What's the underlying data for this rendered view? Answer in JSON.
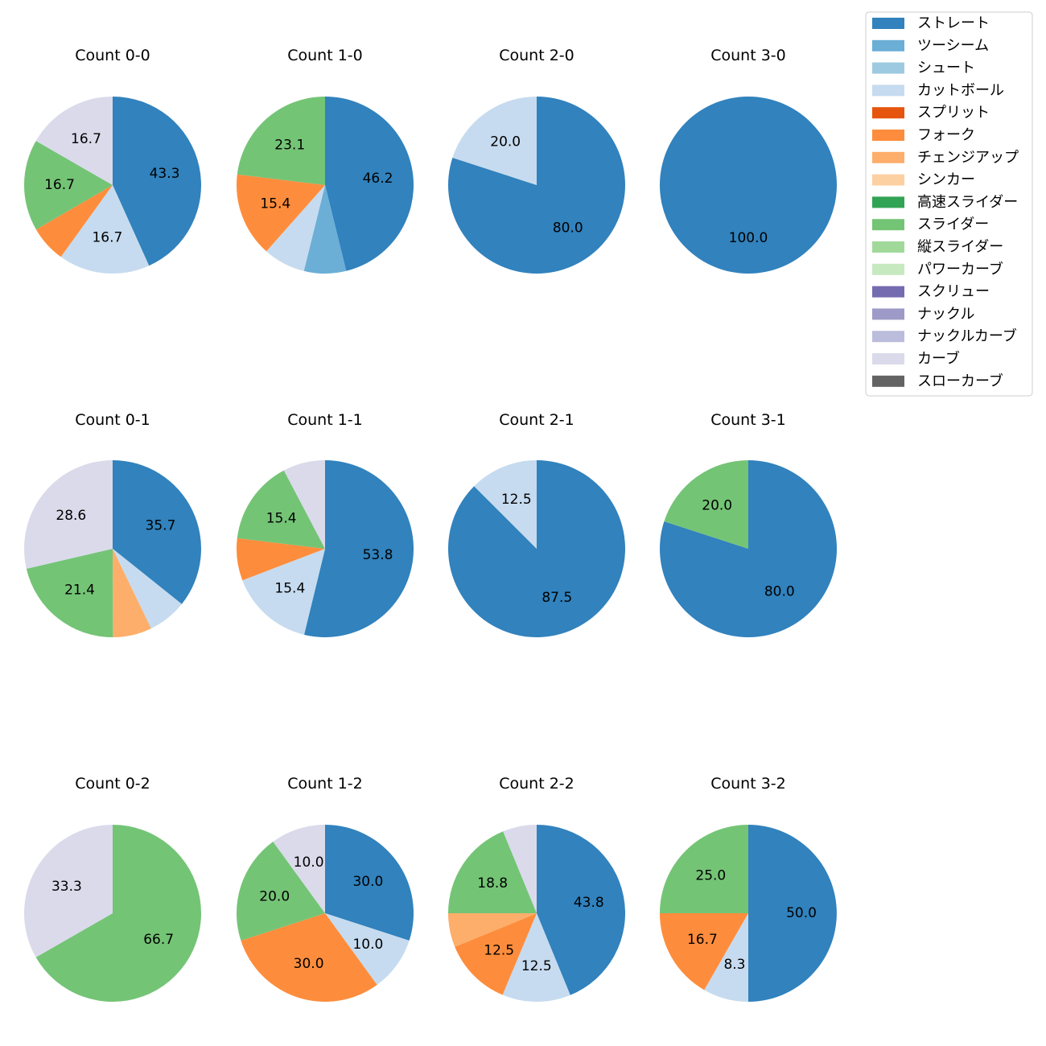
{
  "legend": {
    "entries": [
      {
        "label": "ストレート",
        "color": "#3182bd"
      },
      {
        "label": "ツーシーム",
        "color": "#6baed6"
      },
      {
        "label": "シュート",
        "color": "#9ecae1"
      },
      {
        "label": "カットボール",
        "color": "#c6dbef"
      },
      {
        "label": "スプリット",
        "color": "#e6550d"
      },
      {
        "label": "フォーク",
        "color": "#fd8d3c"
      },
      {
        "label": "チェンジアップ",
        "color": "#fdae6b"
      },
      {
        "label": "シンカー",
        "color": "#fdd0a2"
      },
      {
        "label": "高速スライダー",
        "color": "#31a354"
      },
      {
        "label": "スライダー",
        "color": "#74c476"
      },
      {
        "label": "縦スライダー",
        "color": "#a1d99b"
      },
      {
        "label": "パワーカーブ",
        "color": "#c7e9c0"
      },
      {
        "label": "スクリュー",
        "color": "#756bb1"
      },
      {
        "label": "ナックル",
        "color": "#9e9ac8"
      },
      {
        "label": "ナックルカーブ",
        "color": "#bcbddc"
      },
      {
        "label": "カーブ",
        "color": "#dadaeb"
      },
      {
        "label": "スローカーブ",
        "color": "#636363"
      }
    ]
  },
  "chart_data": [
    {
      "type": "pie",
      "title": "Count 0-0",
      "slices": [
        {
          "name": "ストレート",
          "value": 43.3,
          "label": "43.3"
        },
        {
          "name": "カットボール",
          "value": 16.7,
          "label": "16.7"
        },
        {
          "name": "フォーク",
          "value": 6.7,
          "label": ""
        },
        {
          "name": "スライダー",
          "value": 16.7,
          "label": "16.7"
        },
        {
          "name": "カーブ",
          "value": 16.7,
          "label": "16.7"
        }
      ]
    },
    {
      "type": "pie",
      "title": "Count 1-0",
      "slices": [
        {
          "name": "ストレート",
          "value": 46.2,
          "label": "46.2"
        },
        {
          "name": "ツーシーム",
          "value": 7.7,
          "label": ""
        },
        {
          "name": "カットボール",
          "value": 7.7,
          "label": ""
        },
        {
          "name": "フォーク",
          "value": 15.4,
          "label": "15.4"
        },
        {
          "name": "スライダー",
          "value": 23.1,
          "label": "23.1"
        }
      ]
    },
    {
      "type": "pie",
      "title": "Count 2-0",
      "slices": [
        {
          "name": "ストレート",
          "value": 80.0,
          "label": "80.0"
        },
        {
          "name": "カットボール",
          "value": 20.0,
          "label": "20.0"
        }
      ]
    },
    {
      "type": "pie",
      "title": "Count 3-0",
      "slices": [
        {
          "name": "ストレート",
          "value": 100.0,
          "label": "100.0"
        }
      ]
    },
    {
      "type": "pie",
      "title": "Count 0-1",
      "slices": [
        {
          "name": "ストレート",
          "value": 35.7,
          "label": "35.7"
        },
        {
          "name": "カットボール",
          "value": 7.1,
          "label": ""
        },
        {
          "name": "チェンジアップ",
          "value": 7.1,
          "label": ""
        },
        {
          "name": "スライダー",
          "value": 21.4,
          "label": "21.4"
        },
        {
          "name": "カーブ",
          "value": 28.6,
          "label": "28.6"
        }
      ]
    },
    {
      "type": "pie",
      "title": "Count 1-1",
      "slices": [
        {
          "name": "ストレート",
          "value": 53.8,
          "label": "53.8"
        },
        {
          "name": "カットボール",
          "value": 15.4,
          "label": "15.4"
        },
        {
          "name": "フォーク",
          "value": 7.7,
          "label": ""
        },
        {
          "name": "スライダー",
          "value": 15.4,
          "label": "15.4"
        },
        {
          "name": "カーブ",
          "value": 7.7,
          "label": ""
        }
      ]
    },
    {
      "type": "pie",
      "title": "Count 2-1",
      "slices": [
        {
          "name": "ストレート",
          "value": 87.5,
          "label": "87.5"
        },
        {
          "name": "カットボール",
          "value": 12.5,
          "label": "12.5"
        }
      ]
    },
    {
      "type": "pie",
      "title": "Count 3-1",
      "slices": [
        {
          "name": "ストレート",
          "value": 80.0,
          "label": "80.0"
        },
        {
          "name": "スライダー",
          "value": 20.0,
          "label": "20.0"
        }
      ]
    },
    {
      "type": "pie",
      "title": "Count 0-2",
      "slices": [
        {
          "name": "スライダー",
          "value": 66.7,
          "label": "66.7"
        },
        {
          "name": "カーブ",
          "value": 33.3,
          "label": "33.3"
        }
      ]
    },
    {
      "type": "pie",
      "title": "Count 1-2",
      "slices": [
        {
          "name": "ストレート",
          "value": 30.0,
          "label": "30.0"
        },
        {
          "name": "カットボール",
          "value": 10.0,
          "label": "10.0"
        },
        {
          "name": "フォーク",
          "value": 30.0,
          "label": "30.0"
        },
        {
          "name": "スライダー",
          "value": 20.0,
          "label": "20.0"
        },
        {
          "name": "カーブ",
          "value": 10.0,
          "label": "10.0"
        }
      ]
    },
    {
      "type": "pie",
      "title": "Count 2-2",
      "slices": [
        {
          "name": "ストレート",
          "value": 43.8,
          "label": "43.8"
        },
        {
          "name": "カットボール",
          "value": 12.5,
          "label": "12.5"
        },
        {
          "name": "フォーク",
          "value": 12.5,
          "label": "12.5"
        },
        {
          "name": "チェンジアップ",
          "value": 6.2,
          "label": ""
        },
        {
          "name": "スライダー",
          "value": 18.8,
          "label": "18.8"
        },
        {
          "name": "カーブ",
          "value": 6.2,
          "label": ""
        }
      ]
    },
    {
      "type": "pie",
      "title": "Count 3-2",
      "slices": [
        {
          "name": "ストレート",
          "value": 50.0,
          "label": "50.0"
        },
        {
          "name": "カットボール",
          "value": 8.3,
          "label": "8.3"
        },
        {
          "name": "フォーク",
          "value": 16.7,
          "label": "16.7"
        },
        {
          "name": "スライダー",
          "value": 25.0,
          "label": "25.0"
        }
      ]
    }
  ]
}
